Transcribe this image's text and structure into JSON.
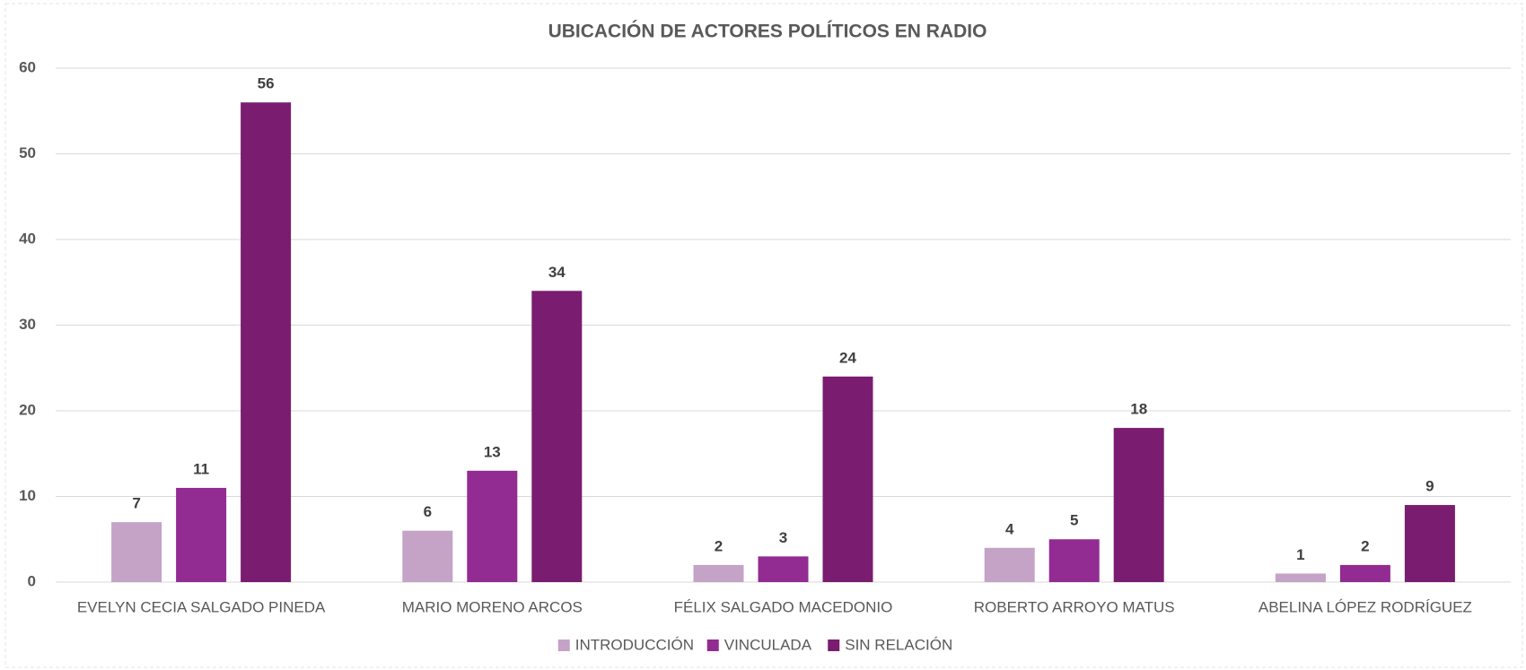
{
  "chart_data": {
    "type": "bar",
    "title": "UBICACIÓN DE ACTORES POLÍTICOS EN RADIO",
    "categories": [
      "EVELYN CECIA SALGADO PINEDA",
      "MARIO MORENO ARCOS",
      "FÉLIX SALGADO MACEDONIO",
      "ROBERTO ARROYO MATUS",
      "ABELINA LÓPEZ RODRÍGUEZ"
    ],
    "series": [
      {
        "name": "INTRODUCCIÓN",
        "color": "#c4a3c6",
        "values": [
          7,
          6,
          2,
          4,
          1
        ]
      },
      {
        "name": "VINCULADA",
        "color": "#922b92",
        "values": [
          11,
          13,
          3,
          5,
          2
        ]
      },
      {
        "name": "SIN RELACIÓN",
        "color": "#7a1c70",
        "values": [
          56,
          34,
          24,
          18,
          9
        ]
      }
    ],
    "ylim": [
      0,
      60
    ],
    "yticks": [
      0,
      10,
      20,
      30,
      40,
      50,
      60
    ],
    "grid": true,
    "legend": "bottom"
  }
}
